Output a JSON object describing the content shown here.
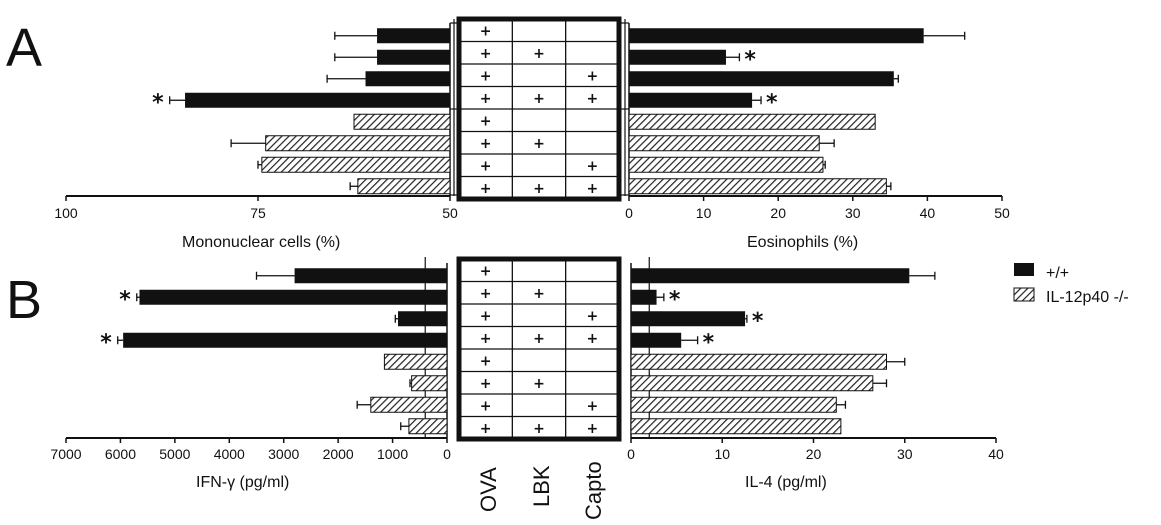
{
  "colors": {
    "wild_type": "#111111",
    "knockout_hatch": "#222222",
    "background": "#ffffff"
  },
  "treatment_labels": [
    "OVA",
    "LBK",
    "Capto"
  ],
  "treatment_rows": [
    [
      true,
      false,
      false
    ],
    [
      true,
      true,
      false
    ],
    [
      true,
      false,
      true
    ],
    [
      true,
      true,
      true
    ],
    [
      true,
      false,
      false
    ],
    [
      true,
      true,
      false
    ],
    [
      true,
      false,
      true
    ],
    [
      true,
      true,
      true
    ]
  ],
  "plus_symbol": "+",
  "significance_symbol": "*",
  "legend": {
    "position": "right",
    "items": [
      {
        "label": "+/+",
        "fill": "solid"
      },
      {
        "label": "IL-12p40 -/-",
        "fill": "hatched"
      }
    ]
  },
  "chart_data": [
    {
      "panel": "A",
      "type": "bar",
      "orientation": "horizontal-mirrored",
      "left": {
        "xlabel": "Mononuclear cells (%)",
        "xlim": [
          100,
          50
        ],
        "ticks": [
          "100",
          "75",
          "50"
        ],
        "tick_values": [
          100,
          75,
          50
        ],
        "series": [
          {
            "name": "+/+",
            "rows": [
              0,
              1,
              2,
              3
            ],
            "values": [
              59.5,
              59.5,
              61,
              84.5
            ],
            "errors": [
              5.5,
              5.5,
              5,
              2
            ],
            "significant": [
              false,
              false,
              false,
              true
            ]
          },
          {
            "name": "IL-12p40 -/-",
            "rows": [
              4,
              5,
              6,
              7
            ],
            "values": [
              62.5,
              74,
              74.5,
              62
            ],
            "errors": [
              0,
              4.5,
              0.5,
              1
            ],
            "significant": [
              false,
              false,
              false,
              false
            ]
          }
        ]
      },
      "right": {
        "xlabel": "Eosinophils (%)",
        "xlim": [
          0,
          50
        ],
        "ticks": [
          "0",
          "10",
          "20",
          "30",
          "40",
          "50"
        ],
        "tick_values": [
          0,
          10,
          20,
          30,
          40,
          50
        ],
        "series": [
          {
            "name": "+/+",
            "rows": [
              0,
              1,
              2,
              3
            ],
            "values": [
              39.5,
              13,
              35.5,
              16.5
            ],
            "errors": [
              5.5,
              1.8,
              0.6,
              1.2
            ],
            "significant": [
              false,
              true,
              false,
              true
            ]
          },
          {
            "name": "IL-12p40 -/-",
            "rows": [
              4,
              5,
              6,
              7
            ],
            "values": [
              33,
              25.5,
              26,
              34.5
            ],
            "errors": [
              0,
              2,
              0.3,
              0.6
            ],
            "significant": [
              false,
              false,
              false,
              false
            ]
          }
        ]
      }
    },
    {
      "panel": "B",
      "type": "bar",
      "orientation": "horizontal-mirrored",
      "left": {
        "xlabel": "IFN-γ (pg/ml)",
        "xlim": [
          7000,
          0
        ],
        "ticks": [
          "7000",
          "6000",
          "5000",
          "4000",
          "3000",
          "2000",
          "1000",
          "0"
        ],
        "tick_values": [
          7000,
          6000,
          5000,
          4000,
          3000,
          2000,
          1000,
          0
        ],
        "reference_line": 400,
        "series": [
          {
            "name": "+/+",
            "rows": [
              0,
              1,
              2,
              3
            ],
            "values": [
              2800,
              5650,
              900,
              5950
            ],
            "errors": [
              700,
              50,
              50,
              100
            ],
            "significant": [
              false,
              true,
              false,
              true
            ]
          },
          {
            "name": "IL-12p40 -/-",
            "rows": [
              4,
              5,
              6,
              7
            ],
            "values": [
              1150,
              650,
              1400,
              700
            ],
            "errors": [
              0,
              30,
              250,
              150
            ],
            "significant": [
              false,
              false,
              false,
              false
            ]
          }
        ]
      },
      "right": {
        "xlabel": "IL-4 (pg/ml)",
        "xlim": [
          0,
          40
        ],
        "ticks": [
          "0",
          "10",
          "20",
          "30",
          "40"
        ],
        "tick_values": [
          0,
          10,
          20,
          30,
          40
        ],
        "reference_line": 2,
        "series": [
          {
            "name": "+/+",
            "rows": [
              0,
              1,
              2,
              3
            ],
            "values": [
              30.5,
              2.8,
              12.5,
              5.5
            ],
            "errors": [
              2.8,
              0.8,
              0.2,
              1.8
            ],
            "significant": [
              false,
              true,
              true,
              true
            ]
          },
          {
            "name": "IL-12p40 -/-",
            "rows": [
              4,
              5,
              6,
              7
            ],
            "values": [
              28,
              26.5,
              22.5,
              23
            ],
            "errors": [
              2,
              1.5,
              1,
              0
            ],
            "significant": [
              false,
              false,
              false,
              false
            ]
          }
        ]
      }
    }
  ]
}
